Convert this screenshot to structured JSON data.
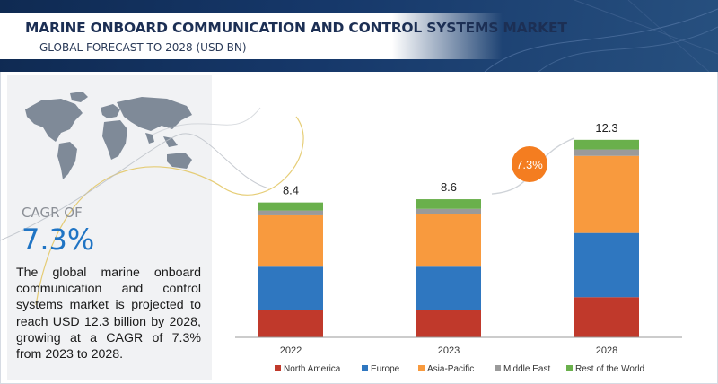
{
  "header": {
    "title": "MARINE ONBOARD COMMUNICATION AND CONTROL SYSTEMS MARKET",
    "subtitle": "GLOBAL FORECAST TO 2028 (USD BN)"
  },
  "summary": {
    "cagr_label": "CAGR OF",
    "cagr_value": "7.3%",
    "description": "The global marine onboard communication and control systems market is projected to reach  USD 12.3 billion by 2028, growing at a CAGR of 7.3% from 2023 to 2028."
  },
  "colors": {
    "north_america": "#c0392b",
    "europe": "#2f77c0",
    "asia_pacific": "#f89a3e",
    "middle_east": "#9a9a9a",
    "rest_of_world": "#6ab04c",
    "cagr_badge": "#f47d20",
    "header_dark": "#16386a"
  },
  "chart_data": {
    "type": "bar",
    "stacked": true,
    "categories": [
      "2022",
      "2023",
      "2028"
    ],
    "totals": [
      8.4,
      8.6,
      12.3
    ],
    "total_labels": [
      "8.4",
      "8.6",
      "12.3"
    ],
    "series": [
      {
        "name": "North America",
        "values": [
          1.7,
          1.7,
          2.5
        ],
        "color": "#c0392b"
      },
      {
        "name": "Europe",
        "values": [
          2.7,
          2.7,
          4.0
        ],
        "color": "#2f77c0"
      },
      {
        "name": "Asia-Pacific",
        "values": [
          3.2,
          3.3,
          4.8
        ],
        "color": "#f89a3e"
      },
      {
        "name": "Middle East",
        "values": [
          0.3,
          0.3,
          0.4
        ],
        "color": "#9a9a9a"
      },
      {
        "name": "Rest of the World",
        "values": [
          0.5,
          0.6,
          0.6
        ],
        "color": "#6ab04c"
      }
    ],
    "annotation": {
      "text": "7.3%"
    },
    "legend_position": "bottom",
    "grid": false
  }
}
